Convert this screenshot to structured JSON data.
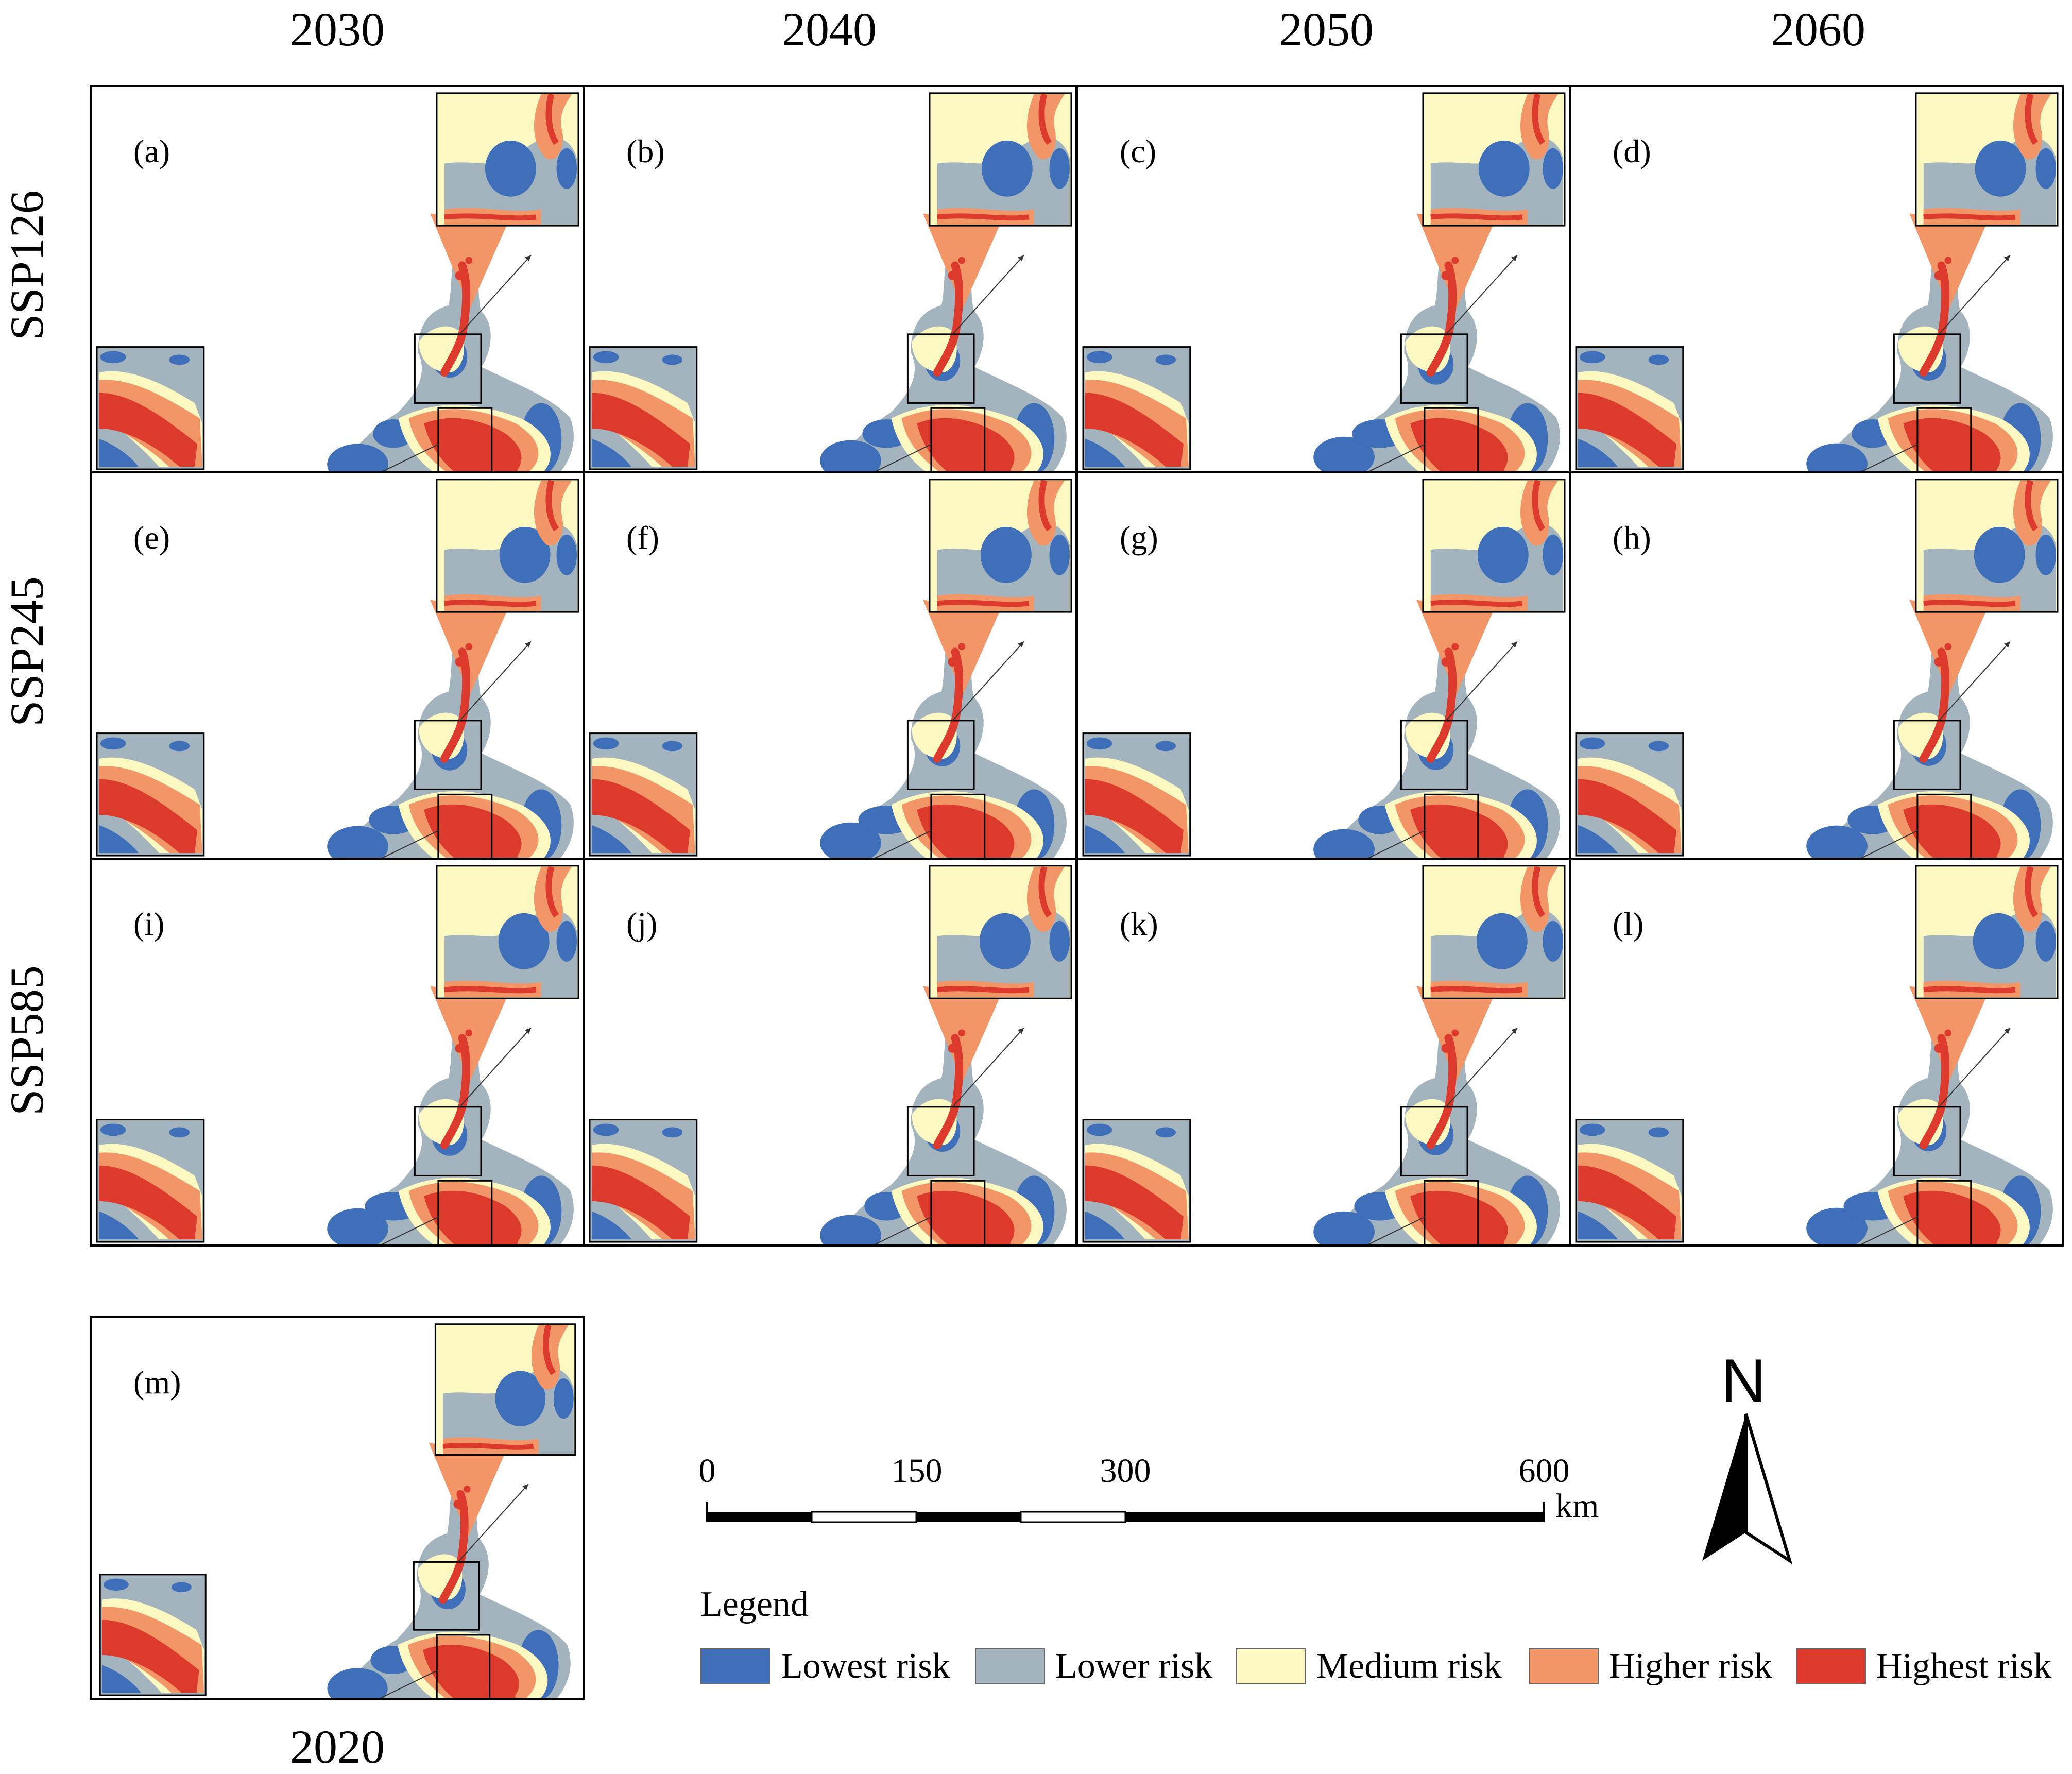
{
  "columns": [
    "2030",
    "2040",
    "2050",
    "2060"
  ],
  "rows": [
    "SSP126",
    "SSP245",
    "SSP585"
  ],
  "panels": [
    {
      "label": "(a)",
      "year": "2030",
      "scenario": "SSP126"
    },
    {
      "label": "(b)",
      "year": "2040",
      "scenario": "SSP126"
    },
    {
      "label": "(c)",
      "year": "2050",
      "scenario": "SSP126"
    },
    {
      "label": "(d)",
      "year": "2060",
      "scenario": "SSP126"
    },
    {
      "label": "(e)",
      "year": "2030",
      "scenario": "SSP245"
    },
    {
      "label": "(f)",
      "year": "2040",
      "scenario": "SSP245"
    },
    {
      "label": "(g)",
      "year": "2050",
      "scenario": "SSP245"
    },
    {
      "label": "(h)",
      "year": "2060",
      "scenario": "SSP245"
    },
    {
      "label": "(i)",
      "year": "2030",
      "scenario": "SSP585"
    },
    {
      "label": "(j)",
      "year": "2040",
      "scenario": "SSP585"
    },
    {
      "label": "(k)",
      "year": "2050",
      "scenario": "SSP585"
    },
    {
      "label": "(l)",
      "year": "2060",
      "scenario": "SSP585"
    }
  ],
  "baseline": {
    "label": "(m)",
    "year": "2020"
  },
  "scale_bar": {
    "ticks": [
      "0",
      "150",
      "300",
      "600"
    ],
    "unit": "km"
  },
  "north_arrow": {
    "label": "N"
  },
  "legend": {
    "title": "Legend",
    "items": [
      {
        "label": "Lowest risk",
        "color": "#3f6fb8"
      },
      {
        "label": "Lower risk",
        "color": "#a3b4be"
      },
      {
        "label": "Medium risk",
        "color": "#fcf8c2"
      },
      {
        "label": "Higher risk",
        "color": "#f29668"
      },
      {
        "label": "Highest risk",
        "color": "#dc3a2c"
      }
    ]
  }
}
